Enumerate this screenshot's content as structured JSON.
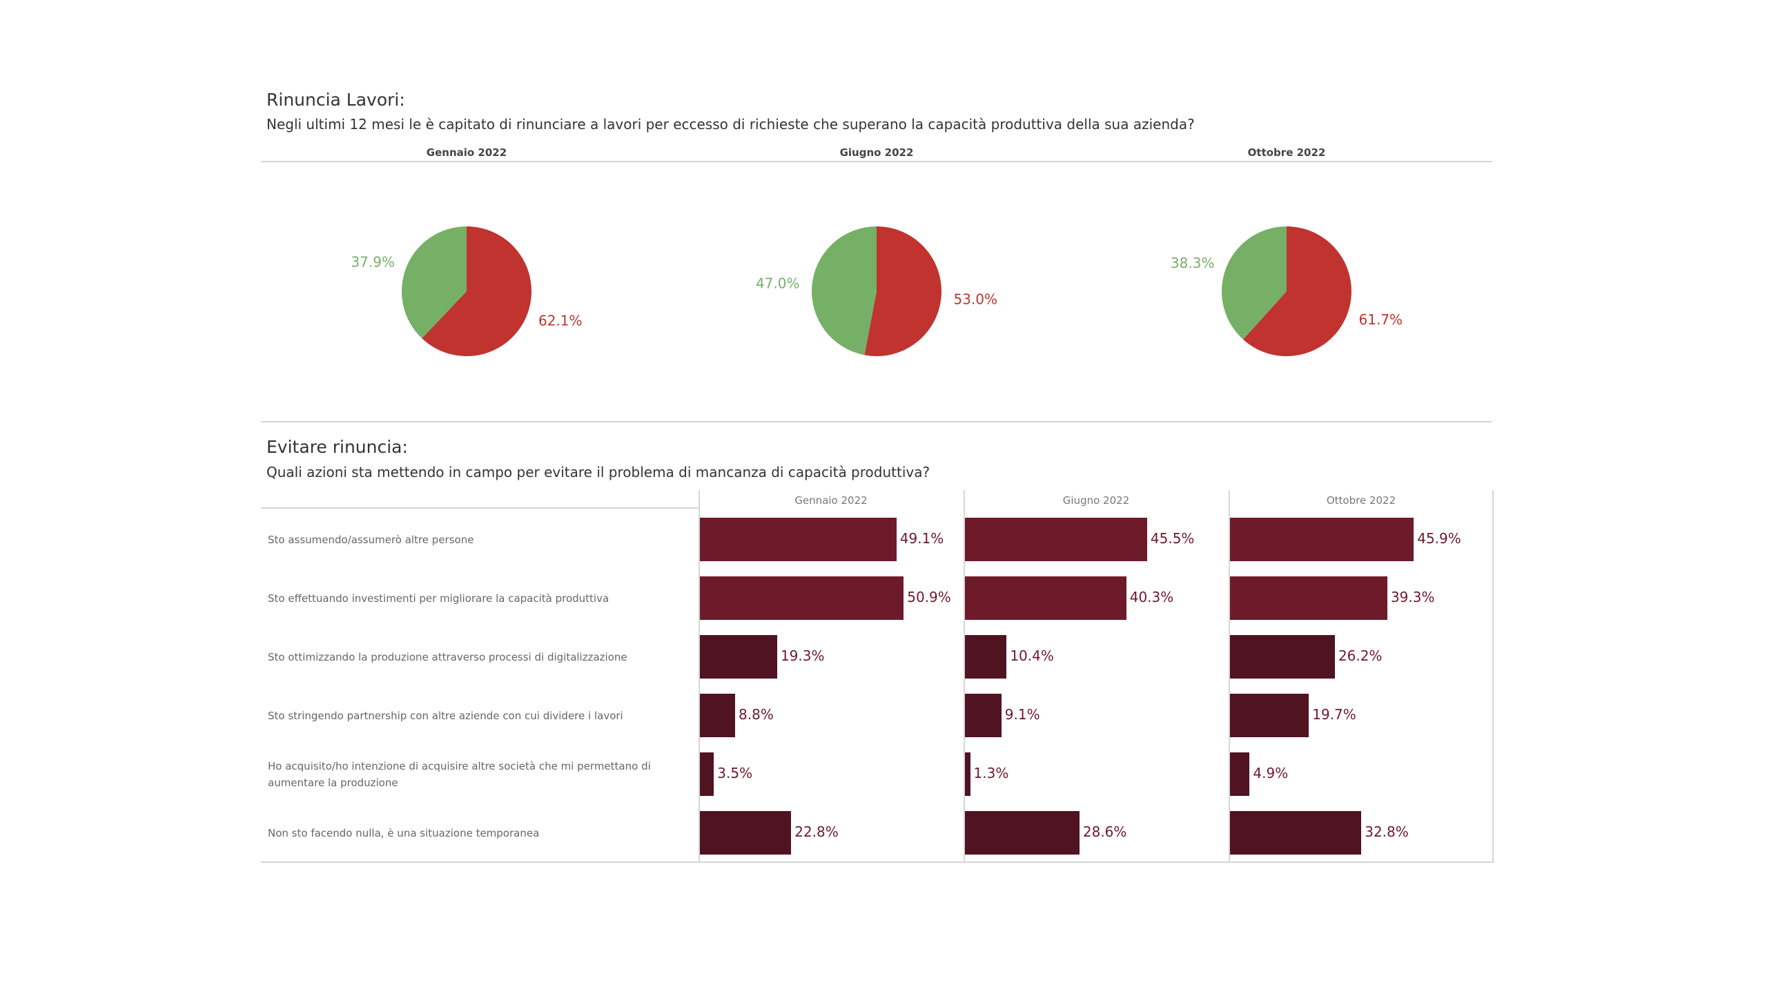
{
  "colors": {
    "green": "#76b066",
    "red": "#c0332f",
    "bar_dark": "#4f1322",
    "bar_mid": "#6d1a2b",
    "label": "#6d1a2b"
  },
  "section1": {
    "title": "Rinuncia Lavori:",
    "subtitle": "Negli ultimi 12 mesi le è capitato di rinunciare a lavori per eccesso di richieste che superano la capacità produttiva della sua azienda?"
  },
  "section2": {
    "title": "Evitare rinuncia:",
    "subtitle": "Quali azioni sta mettendo in campo per evitare il problema di mancanza di capacità produttiva?"
  },
  "chart_data": [
    {
      "type": "pie",
      "title": "Rinuncia Lavori",
      "periods": [
        "Gennaio 2022",
        "Giugno 2022",
        "Ottobre 2022"
      ],
      "slices": [
        {
          "period": "Gennaio 2022",
          "green": 37.9,
          "red": 62.1,
          "green_label": "37.9%",
          "red_label": "62.1%"
        },
        {
          "period": "Giugno 2022",
          "green": 47.0,
          "red": 53.0,
          "green_label": "47.0%",
          "red_label": "53.0%"
        },
        {
          "period": "Ottobre 2022",
          "green": 38.3,
          "red": 61.7,
          "green_label": "38.3%",
          "red_label": "61.7%"
        }
      ]
    },
    {
      "type": "bar",
      "orientation": "horizontal",
      "title": "Evitare rinuncia",
      "categories": [
        "Sto assumendo/assumerò altre persone",
        "Sto effettuando investimenti per migliorare la capacità produttiva",
        "Sto ottimizzando la produzione attraverso processi di digitalizzazione",
        "Sto stringendo partnership con altre aziende con cui dividere i lavori",
        "Ho acquisito/ho intenzione di acquisire altre società che mi permettano di aumentare la produzione",
        "Non sto facendo nulla, è una situazione temporanea"
      ],
      "xlim": [
        0,
        70
      ],
      "series": [
        {
          "name": "Gennaio 2022",
          "values": [
            49.1,
            50.9,
            19.3,
            8.8,
            3.5,
            22.8
          ],
          "labels": [
            "49.1%",
            "50.9%",
            "19.3%",
            "8.8%",
            "3.5%",
            "22.8%"
          ]
        },
        {
          "name": "Giugno 2022",
          "values": [
            45.5,
            40.3,
            10.4,
            9.1,
            1.3,
            28.6
          ],
          "labels": [
            "45.5%",
            "40.3%",
            "10.4%",
            "9.1%",
            "1.3%",
            "28.6%"
          ]
        },
        {
          "name": "Ottobre 2022",
          "values": [
            45.9,
            39.3,
            26.2,
            19.7,
            4.9,
            32.8
          ],
          "labels": [
            "45.9%",
            "39.3%",
            "26.2%",
            "19.7%",
            "4.9%",
            "32.8%"
          ]
        }
      ]
    }
  ]
}
